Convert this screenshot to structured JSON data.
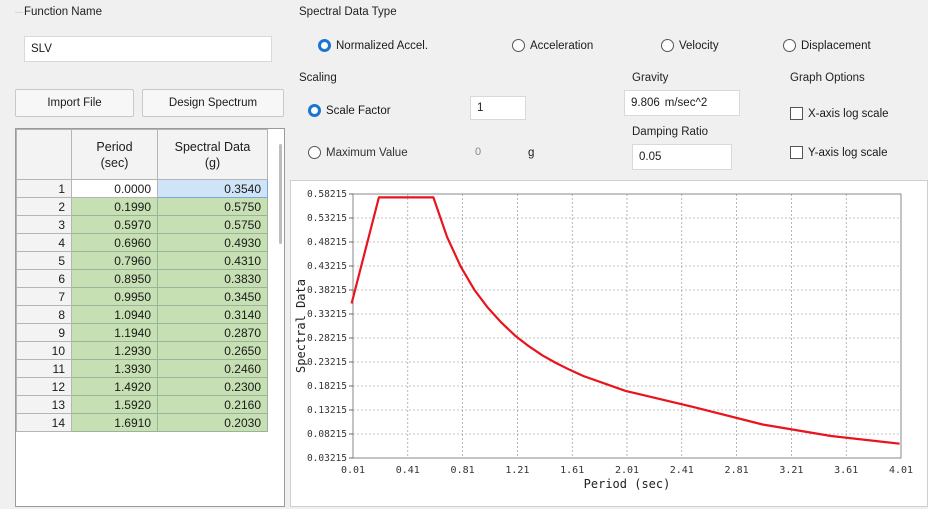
{
  "function_name": {
    "label": "Function Name",
    "value": "SLV"
  },
  "buttons": {
    "import_file": "Import File",
    "design_spectrum": "Design Spectrum"
  },
  "table": {
    "col_period_line1": "Period",
    "col_period_line2": "(sec)",
    "col_data_line1": "Spectral Data",
    "col_data_line2": "(g)",
    "rows": [
      {
        "i": "1",
        "period": "0.0000",
        "value": "0.3540"
      },
      {
        "i": "2",
        "period": "0.1990",
        "value": "0.5750"
      },
      {
        "i": "3",
        "period": "0.5970",
        "value": "0.5750"
      },
      {
        "i": "4",
        "period": "0.6960",
        "value": "0.4930"
      },
      {
        "i": "5",
        "period": "0.7960",
        "value": "0.4310"
      },
      {
        "i": "6",
        "period": "0.8950",
        "value": "0.3830"
      },
      {
        "i": "7",
        "period": "0.9950",
        "value": "0.3450"
      },
      {
        "i": "8",
        "period": "1.0940",
        "value": "0.3140"
      },
      {
        "i": "9",
        "period": "1.1940",
        "value": "0.2870"
      },
      {
        "i": "10",
        "period": "1.2930",
        "value": "0.2650"
      },
      {
        "i": "11",
        "period": "1.3930",
        "value": "0.2460"
      },
      {
        "i": "12",
        "period": "1.4920",
        "value": "0.2300"
      },
      {
        "i": "13",
        "period": "1.5920",
        "value": "0.2160"
      },
      {
        "i": "14",
        "period": "1.6910",
        "value": "0.2030"
      }
    ]
  },
  "spectral_type": {
    "label": "Spectral Data Type",
    "options": [
      "Normalized Accel.",
      "Acceleration",
      "Velocity",
      "Displacement"
    ],
    "selected": "Normalized Accel."
  },
  "scaling": {
    "label": "Scaling",
    "scale_factor_label": "Scale Factor",
    "scale_factor_value": "1",
    "maximum_value_label": "Maximum Value",
    "maximum_value": "0",
    "maximum_unit": "g",
    "selected": "Scale Factor"
  },
  "gravity": {
    "label": "Gravity",
    "value": "9.806",
    "unit": "m/sec^2"
  },
  "damping": {
    "label": "Damping Ratio",
    "value": "0.05"
  },
  "graph_options": {
    "label": "Graph Options",
    "x_log": "X-axis log scale",
    "y_log": "Y-axis log scale",
    "x_log_checked": false,
    "y_log_checked": false
  },
  "colors": {
    "accent": "#1976d2",
    "line": "#e8141e",
    "cell_green": "#c6e0b4",
    "cell_selected": "#cfe4f7"
  },
  "chart_data": {
    "type": "line",
    "xlabel": "Period (sec)",
    "ylabel": "Spectral Data",
    "xlim": [
      0.01,
      4.01
    ],
    "ylim": [
      0.03215,
      0.58215
    ],
    "x_ticks": [
      "0.01",
      "0.41",
      "0.81",
      "1.21",
      "1.61",
      "2.01",
      "2.41",
      "2.81",
      "3.21",
      "3.61",
      "4.01"
    ],
    "y_ticks": [
      "0.58215",
      "0.53215",
      "0.48215",
      "0.43215",
      "0.38215",
      "0.33215",
      "0.28215",
      "0.23215",
      "0.18215",
      "0.13215",
      "0.08215",
      "0.03215"
    ],
    "grid": true,
    "series": [
      {
        "x": [
          0.0,
          0.199,
          0.597,
          0.696,
          0.796,
          0.895,
          0.995,
          1.094,
          1.194,
          1.293,
          1.393,
          1.492,
          1.592,
          1.691,
          2.0,
          2.5,
          3.0,
          3.5,
          4.0
        ],
        "y": [
          0.354,
          0.575,
          0.575,
          0.493,
          0.431,
          0.383,
          0.345,
          0.314,
          0.287,
          0.265,
          0.246,
          0.23,
          0.216,
          0.203,
          0.172,
          0.138,
          0.102,
          0.078,
          0.062
        ]
      }
    ]
  }
}
